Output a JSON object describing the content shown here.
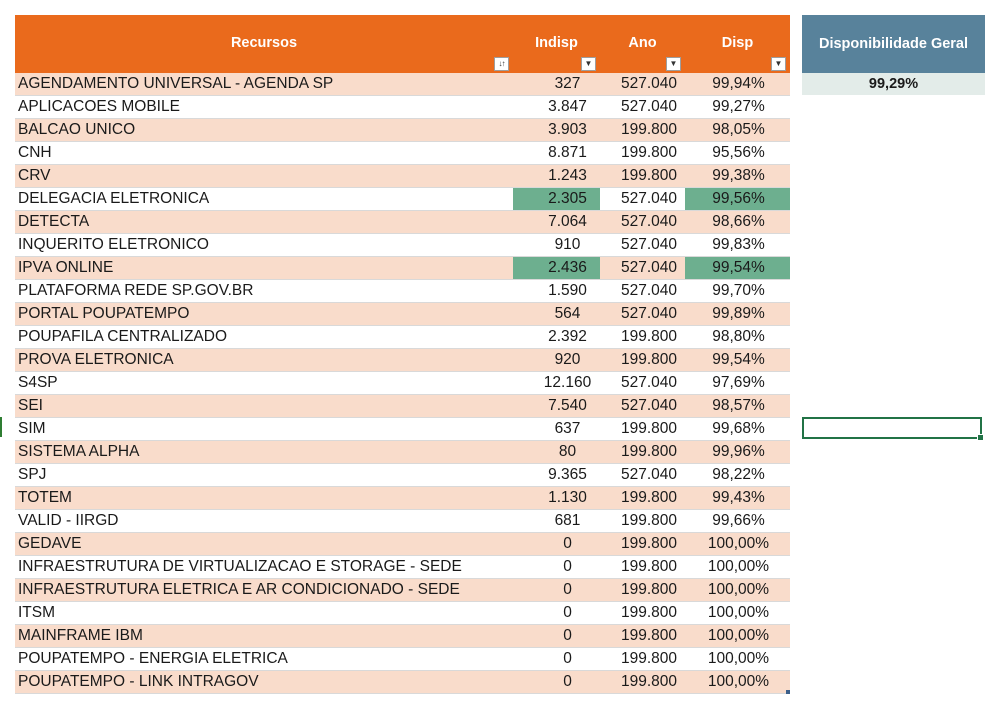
{
  "headers": {
    "recursos": "Recursos",
    "indisp": "Indisp",
    "ano": "Ano",
    "disp": "Disp"
  },
  "filter_icons": {
    "recursos": "sort-filter-icon",
    "indisp": "dropdown-arrow-icon",
    "ano": "dropdown-arrow-icon",
    "disp": "dropdown-arrow-icon"
  },
  "rows": [
    {
      "name": "AGENDAMENTO UNIVERSAL - AGENDA SP",
      "indisp": "327",
      "ano": "527.040",
      "disp": "99,94%"
    },
    {
      "name": "APLICACOES MOBILE",
      "indisp": "3.847",
      "ano": "527.040",
      "disp": "99,27%"
    },
    {
      "name": "BALCAO UNICO",
      "indisp": "3.903",
      "ano": "199.800",
      "disp": "98,05%"
    },
    {
      "name": "CNH",
      "indisp": "8.871",
      "ano": "199.800",
      "disp": "95,56%"
    },
    {
      "name": "CRV",
      "indisp": "1.243",
      "ano": "199.800",
      "disp": "99,38%"
    },
    {
      "name": "DELEGACIA ELETRONICA",
      "indisp": "2.305",
      "ano": "527.040",
      "disp": "99,56%",
      "highlight": true
    },
    {
      "name": "DETECTA",
      "indisp": "7.064",
      "ano": "527.040",
      "disp": "98,66%"
    },
    {
      "name": "INQUERITO ELETRONICO",
      "indisp": "910",
      "ano": "527.040",
      "disp": "99,83%"
    },
    {
      "name": "IPVA ONLINE",
      "indisp": "2.436",
      "ano": "527.040",
      "disp": "99,54%",
      "highlight": true
    },
    {
      "name": "PLATAFORMA REDE SP.GOV.BR",
      "indisp": "1.590",
      "ano": "527.040",
      "disp": "99,70%"
    },
    {
      "name": "PORTAL POUPATEMPO",
      "indisp": "564",
      "ano": "527.040",
      "disp": "99,89%"
    },
    {
      "name": "POUPAFILA CENTRALIZADO",
      "indisp": "2.392",
      "ano": "199.800",
      "disp": "98,80%"
    },
    {
      "name": "PROVA ELETRONICA",
      "indisp": "920",
      "ano": "199.800",
      "disp": "99,54%"
    },
    {
      "name": "S4SP",
      "indisp": "12.160",
      "ano": "527.040",
      "disp": "97,69%"
    },
    {
      "name": "SEI",
      "indisp": "7.540",
      "ano": "527.040",
      "disp": "98,57%"
    },
    {
      "name": "SIM",
      "indisp": "637",
      "ano": "199.800",
      "disp": "99,68%"
    },
    {
      "name": "SISTEMA ALPHA",
      "indisp": "80",
      "ano": "199.800",
      "disp": "99,96%"
    },
    {
      "name": "SPJ",
      "indisp": "9.365",
      "ano": "527.040",
      "disp": "98,22%"
    },
    {
      "name": "TOTEM",
      "indisp": "1.130",
      "ano": "199.800",
      "disp": "99,43%"
    },
    {
      "name": "VALID - IIRGD",
      "indisp": "681",
      "ano": "199.800",
      "disp": "99,66%"
    },
    {
      "name": "GEDAVE",
      "indisp": "0",
      "ano": "199.800",
      "disp": "100,00%"
    },
    {
      "name": "INFRAESTRUTURA DE VIRTUALIZACAO E STORAGE - SEDE",
      "indisp": "0",
      "ano": "199.800",
      "disp": "100,00%"
    },
    {
      "name": "INFRAESTRUTURA ELETRICA E AR CONDICIONADO - SEDE",
      "indisp": "0",
      "ano": "199.800",
      "disp": "100,00%"
    },
    {
      "name": "ITSM",
      "indisp": "0",
      "ano": "199.800",
      "disp": "100,00%"
    },
    {
      "name": "MAINFRAME IBM",
      "indisp": "0",
      "ano": "199.800",
      "disp": "100,00%"
    },
    {
      "name": "POUPATEMPO - ENERGIA ELETRICA",
      "indisp": "0",
      "ano": "199.800",
      "disp": "100,00%"
    },
    {
      "name": "POUPATEMPO - LINK INTRAGOV",
      "indisp": "0",
      "ano": "199.800",
      "disp": "100,00%"
    }
  ],
  "summary": {
    "title": "Disponibilidade Geral",
    "value": "99,29%"
  },
  "colors": {
    "header_orange": "#ea6a1c",
    "band_peach": "#f9dccb",
    "highlight_green": "#6daf8f",
    "summary_header": "#58829b",
    "summary_value_bg": "#e3ece9",
    "selection_green": "#217346"
  }
}
